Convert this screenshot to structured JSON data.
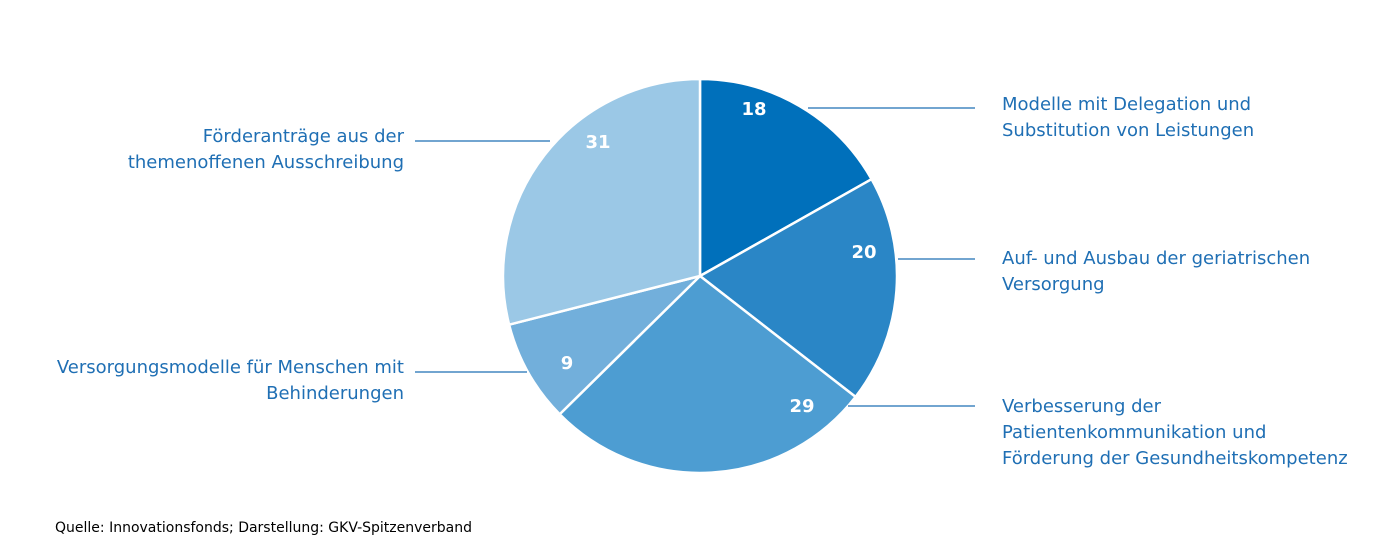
{
  "chart_data": {
    "type": "pie",
    "categories": [
      [
        "Modelle mit Delegation und",
        "Substitution von Leistungen"
      ],
      [
        "Auf- und Ausbau der geriatrischen",
        "Versorgung"
      ],
      [
        "Verbesserung der",
        "Patientenkommunikation und",
        "Förderung der Gesundheitskompetenz"
      ],
      [
        "Versorgungsmodelle für Menschen mit",
        "Behinderungen"
      ],
      [
        "Förderanträge aus der",
        "themenoffenen Ausschreibung"
      ]
    ],
    "values": [
      18,
      20,
      29,
      9,
      31
    ],
    "colors": [
      "#0070bb",
      "#2a86c6",
      "#4d9dd2",
      "#72afdb",
      "#9bc8e6"
    ],
    "source": "Quelle: Innovationsfonds; Darstellung: GKV-Spitzenverband"
  }
}
